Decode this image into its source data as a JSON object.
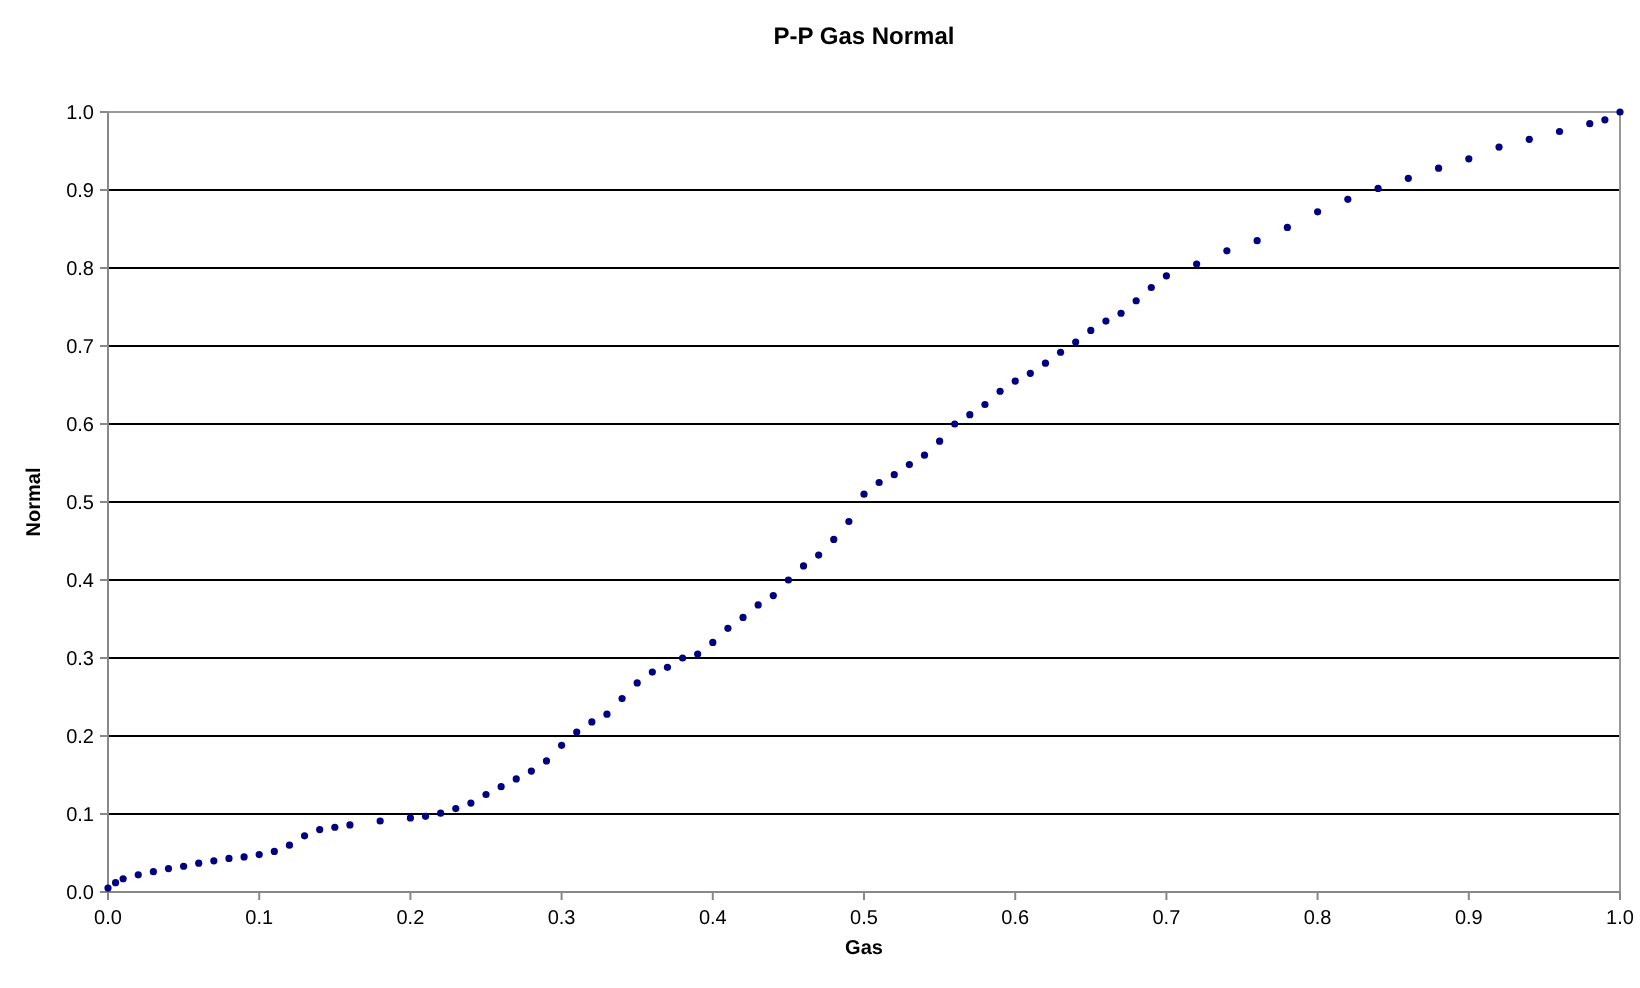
{
  "chart_data": {
    "type": "scatter",
    "title": "P-P Gas Normal",
    "xlabel": "Gas",
    "ylabel": "Normal",
    "marker": "circle",
    "grid": "y",
    "xlim": [
      0,
      1
    ],
    "xticks": [
      {
        "value": 0,
        "label": "0.0"
      },
      0.1,
      0.2,
      0.3,
      0.4,
      0.5,
      0.6,
      0.7,
      0.8,
      0.9,
      {
        "value": 1,
        "label": "1.0"
      }
    ],
    "ylim": [
      0,
      1
    ],
    "yticks": [
      {
        "value": 0,
        "label": "0.0"
      },
      0.1,
      0.2,
      0.3,
      0.4,
      0.5,
      0.6,
      0.7,
      0.8,
      0.9,
      {
        "value": 1,
        "label": "1.0"
      }
    ],
    "series": [
      {
        "color": "#000080",
        "x": [
          0,
          0.005,
          0.01,
          0.02,
          0.03,
          0.04,
          0.05,
          0.06,
          0.07,
          0.08,
          0.09,
          0.1,
          0.11,
          0.12,
          0.13,
          0.14,
          0.15,
          0.16,
          0.18,
          0.2,
          0.21,
          0.22,
          0.23,
          0.24,
          0.25,
          0.26,
          0.27,
          0.28,
          0.29,
          0.3,
          0.31,
          0.32,
          0.33,
          0.34,
          0.35,
          0.36,
          0.37,
          0.38,
          0.39,
          0.4,
          0.41,
          0.42,
          0.43,
          0.44,
          0.45,
          0.46,
          0.47,
          0.48,
          0.49,
          0.5,
          0.51,
          0.52,
          0.53,
          0.54,
          0.55,
          0.56,
          0.57,
          0.58,
          0.59,
          0.6,
          0.61,
          0.62,
          0.63,
          0.64,
          0.65,
          0.66,
          0.67,
          0.68,
          0.69,
          0.7,
          0.72,
          0.74,
          0.76,
          0.78,
          0.8,
          0.82,
          0.84,
          0.86,
          0.88,
          0.9,
          0.92,
          0.94,
          0.96,
          0.98,
          0.99,
          1
        ],
        "values": [
          0.005,
          0.012,
          0.017,
          0.022,
          0.026,
          0.03,
          0.033,
          0.037,
          0.04,
          0.043,
          0.045,
          0.048,
          0.052,
          0.06,
          0.072,
          0.08,
          0.083,
          0.086,
          0.091,
          0.095,
          0.097,
          0.101,
          0.107,
          0.114,
          0.125,
          0.135,
          0.145,
          0.155,
          0.168,
          0.188,
          0.205,
          0.218,
          0.228,
          0.248,
          0.268,
          0.282,
          0.288,
          0.3,
          0.305,
          0.32,
          0.338,
          0.352,
          0.368,
          0.38,
          0.4,
          0.418,
          0.432,
          0.452,
          0.475,
          0.51,
          0.525,
          0.535,
          0.548,
          0.56,
          0.578,
          0.6,
          0.612,
          0.625,
          0.642,
          0.655,
          0.665,
          0.678,
          0.692,
          0.705,
          0.72,
          0.732,
          0.742,
          0.758,
          0.775,
          0.79,
          0.805,
          0.822,
          0.835,
          0.852,
          0.872,
          0.888,
          0.902,
          0.915,
          0.928,
          0.94,
          0.955,
          0.965,
          0.975,
          0.985,
          0.99,
          1
        ]
      }
    ]
  }
}
